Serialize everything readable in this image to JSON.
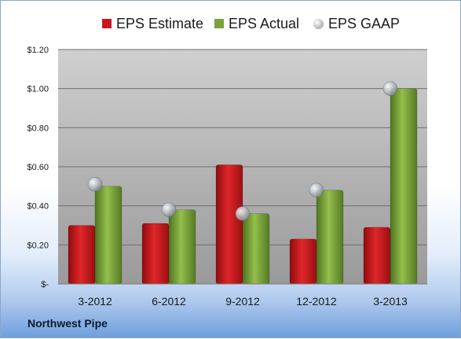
{
  "chart_data": {
    "type": "bar",
    "categories": [
      "3-2012",
      "6-2012",
      "9-2012",
      "12-2012",
      "3-2013"
    ],
    "series": [
      {
        "name": "EPS Estimate",
        "values": [
          0.3,
          0.31,
          0.61,
          0.23,
          0.29
        ],
        "color": "#c8181c"
      },
      {
        "name": "EPS Actual",
        "values": [
          0.5,
          0.38,
          0.36,
          0.48,
          1.0
        ],
        "color": "#7aa33a"
      },
      {
        "name": "EPS GAAP",
        "values": [
          0.51,
          0.38,
          0.36,
          0.48,
          1.0
        ],
        "color": "#a8adb4",
        "marker": "circle"
      }
    ],
    "y_ticks": [
      "$-",
      "$0.20",
      "$0.40",
      "$0.60",
      "$0.80",
      "$1.00",
      "$1.20"
    ],
    "ylim": [
      0,
      1.2
    ],
    "grid": true,
    "legend": "top"
  },
  "company": "Northwest Pipe"
}
